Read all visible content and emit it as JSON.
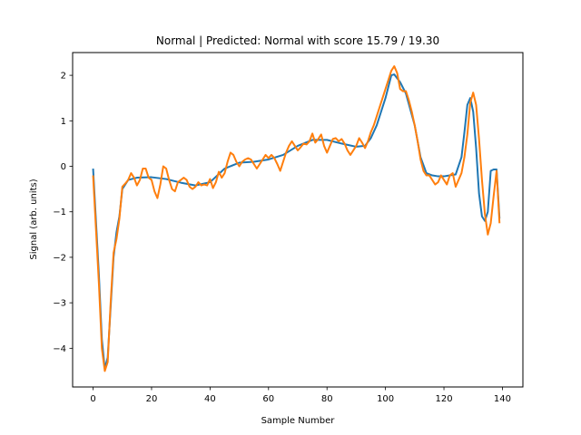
{
  "chart_data": {
    "type": "line",
    "title": "Normal | Predicted: Normal with score 15.79 / 19.30",
    "xlabel": "Sample Number",
    "ylabel": "Signal (arb. units)",
    "xlim": [
      -7,
      147
    ],
    "ylim": [
      -4.85,
      2.5
    ],
    "xticks": [
      0,
      20,
      40,
      60,
      80,
      100,
      120,
      140
    ],
    "yticks": [
      2,
      1,
      0,
      -1,
      -2,
      -3,
      -4
    ],
    "ytick_labels": [
      "2",
      "1",
      "0",
      "−1",
      "−2",
      "−3",
      "−4"
    ],
    "grid": false,
    "legend": "none",
    "series": [
      {
        "color": "#1f77b4",
        "x": [
          0,
          2,
          3,
          4,
          5,
          6,
          7,
          8,
          9,
          10,
          12,
          15,
          20,
          25,
          30,
          35,
          40,
          45,
          50,
          55,
          60,
          65,
          70,
          75,
          80,
          85,
          90,
          93,
          95,
          97,
          100,
          102,
          103,
          105,
          107,
          110,
          112,
          114,
          116,
          118,
          120,
          122,
          124,
          126,
          127,
          128,
          129,
          130,
          131,
          132,
          133,
          134,
          135,
          136,
          137,
          138,
          139
        ],
        "y": [
          -0.05,
          -2.4,
          -3.8,
          -4.45,
          -4.2,
          -3.1,
          -2.0,
          -1.45,
          -1.1,
          -0.5,
          -0.3,
          -0.25,
          -0.24,
          -0.28,
          -0.36,
          -0.42,
          -0.35,
          -0.05,
          0.08,
          0.1,
          0.15,
          0.25,
          0.45,
          0.58,
          0.58,
          0.5,
          0.43,
          0.45,
          0.62,
          0.9,
          1.5,
          2.0,
          2.02,
          1.85,
          1.6,
          0.9,
          0.2,
          -0.15,
          -0.2,
          -0.22,
          -0.22,
          -0.2,
          -0.18,
          0.2,
          0.75,
          1.35,
          1.5,
          1.2,
          0.4,
          -0.6,
          -1.1,
          -1.2,
          -1.0,
          -0.1,
          -0.07,
          -0.07,
          -1.15
        ]
      },
      {
        "color": "#ff7f0e",
        "x": [
          0,
          2,
          3,
          4,
          5,
          6,
          7,
          8,
          9,
          10,
          11,
          12,
          13,
          14,
          15,
          16,
          17,
          18,
          19,
          20,
          21,
          22,
          23,
          24,
          25,
          26,
          27,
          28,
          29,
          30,
          31,
          32,
          33,
          34,
          35,
          36,
          37,
          38,
          39,
          40,
          41,
          42,
          43,
          44,
          45,
          46,
          47,
          48,
          49,
          50,
          51,
          52,
          53,
          54,
          55,
          56,
          57,
          58,
          59,
          60,
          61,
          62,
          63,
          64,
          65,
          66,
          67,
          68,
          69,
          70,
          71,
          72,
          73,
          74,
          75,
          76,
          77,
          78,
          79,
          80,
          81,
          82,
          83,
          84,
          85,
          86,
          87,
          88,
          89,
          90,
          91,
          92,
          93,
          94,
          95,
          96,
          97,
          98,
          99,
          100,
          101,
          102,
          103,
          104,
          105,
          106,
          107,
          108,
          109,
          110,
          111,
          112,
          113,
          114,
          115,
          116,
          117,
          118,
          119,
          120,
          121,
          122,
          123,
          124,
          125,
          126,
          127,
          128,
          129,
          130,
          131,
          132,
          133,
          134,
          135,
          136,
          137,
          138,
          139
        ],
        "y": [
          -0.2,
          -2.6,
          -4.0,
          -4.5,
          -4.3,
          -3.0,
          -1.9,
          -1.6,
          -1.15,
          -0.45,
          -0.38,
          -0.3,
          -0.15,
          -0.25,
          -0.42,
          -0.3,
          -0.05,
          -0.05,
          -0.25,
          -0.3,
          -0.55,
          -0.7,
          -0.4,
          0.0,
          -0.05,
          -0.3,
          -0.5,
          -0.55,
          -0.35,
          -0.3,
          -0.25,
          -0.3,
          -0.45,
          -0.5,
          -0.45,
          -0.35,
          -0.42,
          -0.4,
          -0.42,
          -0.28,
          -0.48,
          -0.35,
          -0.12,
          -0.25,
          -0.15,
          0.1,
          0.3,
          0.25,
          0.1,
          0.0,
          0.1,
          0.15,
          0.18,
          0.15,
          0.05,
          -0.05,
          0.05,
          0.15,
          0.25,
          0.18,
          0.25,
          0.18,
          0.05,
          -0.1,
          0.1,
          0.3,
          0.45,
          0.55,
          0.45,
          0.35,
          0.42,
          0.5,
          0.48,
          0.55,
          0.72,
          0.52,
          0.6,
          0.7,
          0.45,
          0.3,
          0.45,
          0.6,
          0.62,
          0.55,
          0.6,
          0.5,
          0.35,
          0.25,
          0.35,
          0.45,
          0.62,
          0.52,
          0.4,
          0.55,
          0.75,
          0.9,
          1.1,
          1.3,
          1.5,
          1.7,
          1.9,
          2.1,
          2.2,
          2.05,
          1.7,
          1.65,
          1.65,
          1.45,
          1.2,
          0.9,
          0.55,
          0.15,
          -0.1,
          -0.2,
          -0.2,
          -0.3,
          -0.4,
          -0.35,
          -0.2,
          -0.3,
          -0.4,
          -0.2,
          -0.15,
          -0.45,
          -0.3,
          -0.15,
          0.2,
          0.7,
          1.4,
          1.62,
          1.35,
          0.6,
          -0.3,
          -1.05,
          -1.5,
          -1.25,
          -0.65,
          -0.1,
          -1.25
        ]
      }
    ]
  }
}
